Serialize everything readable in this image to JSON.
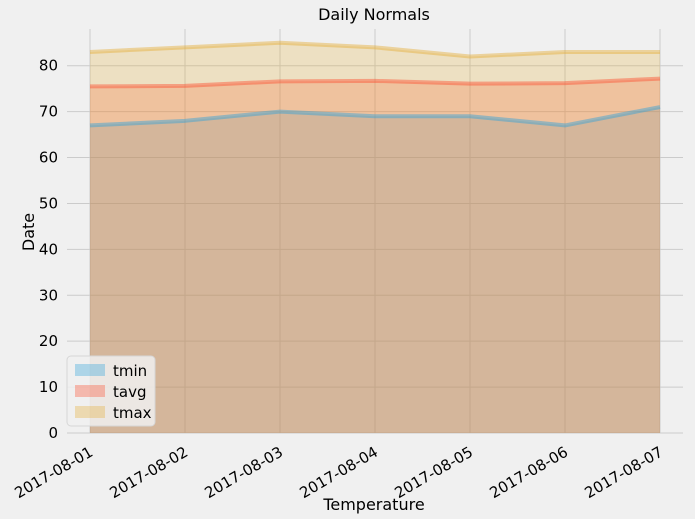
{
  "chart_data": {
    "type": "area",
    "title": "Daily Normals",
    "xlabel": "Temperature",
    "ylabel": "Date",
    "x": [
      "2017-08-01",
      "2017-08-02",
      "2017-08-03",
      "2017-08-04",
      "2017-08-05",
      "2017-08-06",
      "2017-08-07"
    ],
    "series": [
      {
        "name": "tmin",
        "values": [
          67.0,
          68.0,
          70.0,
          69.0,
          69.0,
          67.0,
          71.0
        ],
        "color": "#30a2da"
      },
      {
        "name": "tavg",
        "values": [
          75.5,
          75.6,
          76.6,
          76.7,
          76.1,
          76.2,
          77.2
        ],
        "color": "#fc4f30"
      },
      {
        "name": "tmax",
        "values": [
          83.0,
          84.0,
          85.0,
          84.0,
          82.0,
          83.0,
          83.0
        ],
        "color": "#e5ae38"
      }
    ],
    "ylim": [
      0,
      88
    ],
    "yticks": [
      0,
      10,
      20,
      30,
      40,
      50,
      60,
      70,
      80
    ],
    "grid": true,
    "stacked": false,
    "legend": "lower-left",
    "background": "#f0f0f0",
    "grid_color": "#cbcbcb"
  }
}
